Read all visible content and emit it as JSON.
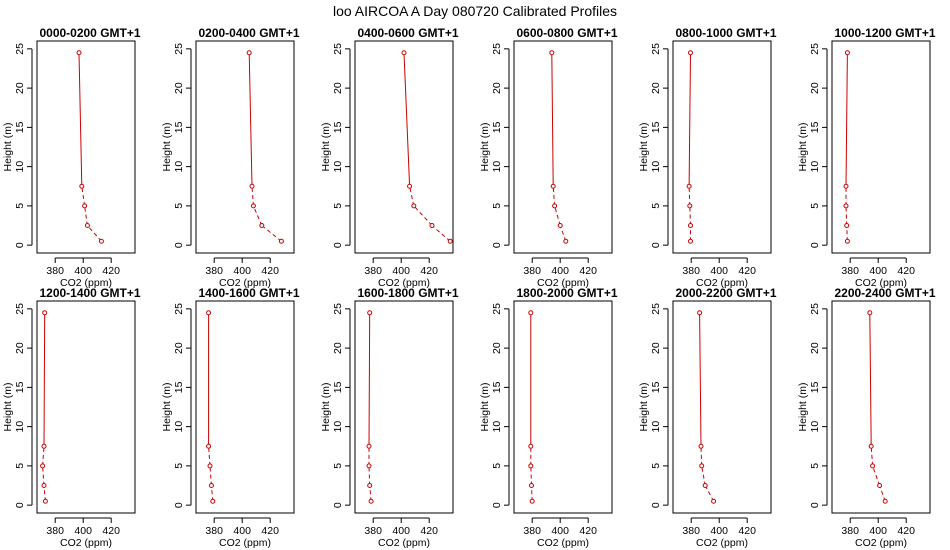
{
  "figure_title": "loo AIRCOA A  Day 080720  Calibrated Profiles",
  "chart_data": [
    {
      "type": "line",
      "title": "0000-0200 GMT+1",
      "xlabel": "CO2 (ppm)",
      "ylabel": "Height (m)",
      "xlim": [
        367,
        437
      ],
      "ylim": [
        -1,
        26
      ],
      "xticks": [
        380,
        400,
        420
      ],
      "yticks": [
        0,
        5,
        10,
        15,
        20,
        25
      ],
      "color": "#cc0000",
      "series": [
        {
          "x": [
            413,
            403,
            401,
            399,
            397
          ],
          "y": [
            0.5,
            2.5,
            5,
            7.5,
            24.5
          ]
        }
      ]
    },
    {
      "type": "line",
      "title": "0200-0400 GMT+1",
      "xlabel": "CO2 (ppm)",
      "ylabel": "Height (m)",
      "xlim": [
        367,
        437
      ],
      "ylim": [
        -1,
        26
      ],
      "xticks": [
        380,
        400,
        420
      ],
      "yticks": [
        0,
        5,
        10,
        15,
        20,
        25
      ],
      "color": "#cc0000",
      "series": [
        {
          "x": [
            428,
            414,
            408,
            407,
            405
          ],
          "y": [
            0.5,
            2.5,
            5,
            7.5,
            24.5
          ]
        }
      ]
    },
    {
      "type": "line",
      "title": "0400-0600 GMT+1",
      "xlabel": "CO2 (ppm)",
      "ylabel": "Height (m)",
      "xlim": [
        367,
        437
      ],
      "ylim": [
        -1,
        26
      ],
      "xticks": [
        380,
        400,
        420
      ],
      "yticks": [
        0,
        5,
        10,
        15,
        20,
        25
      ],
      "color": "#cc0000",
      "series": [
        {
          "x": [
            435,
            422,
            409,
            406,
            402
          ],
          "y": [
            0.5,
            2.5,
            5,
            7.5,
            24.5
          ]
        }
      ]
    },
    {
      "type": "line",
      "title": "0600-0800 GMT+1",
      "xlabel": "CO2 (ppm)",
      "ylabel": "Height (m)",
      "xlim": [
        367,
        437
      ],
      "ylim": [
        -1,
        26
      ],
      "xticks": [
        380,
        400,
        420
      ],
      "yticks": [
        0,
        5,
        10,
        15,
        20,
        25
      ],
      "color": "#cc0000",
      "series": [
        {
          "x": [
            404,
            400,
            396,
            395,
            394
          ],
          "y": [
            0.5,
            2.5,
            5,
            7.5,
            24.5
          ]
        }
      ]
    },
    {
      "type": "line",
      "title": "0800-1000 GMT+1",
      "xlabel": "CO2 (ppm)",
      "ylabel": "Height (m)",
      "xlim": [
        367,
        437
      ],
      "ylim": [
        -1,
        26
      ],
      "xticks": [
        380,
        400,
        420
      ],
      "yticks": [
        0,
        5,
        10,
        15,
        20,
        25
      ],
      "color": "#cc0000",
      "series": [
        {
          "x": [
            379.5,
            379.5,
            379,
            378.5,
            379.5
          ],
          "y": [
            0.5,
            2.5,
            5,
            7.5,
            24.5
          ]
        }
      ]
    },
    {
      "type": "line",
      "title": "1000-1200 GMT+1",
      "xlabel": "CO2 (ppm)",
      "ylabel": "Height (m)",
      "xlim": [
        367,
        437
      ],
      "ylim": [
        -1,
        26
      ],
      "xticks": [
        380,
        400,
        420
      ],
      "yticks": [
        0,
        5,
        10,
        15,
        20,
        25
      ],
      "color": "#cc0000",
      "series": [
        {
          "x": [
            378,
            377.5,
            377,
            377,
            378
          ],
          "y": [
            0.5,
            2.5,
            5,
            7.5,
            24.5
          ]
        }
      ]
    },
    {
      "type": "line",
      "title": "1200-1400 GMT+1",
      "xlabel": "CO2 (ppm)",
      "ylabel": "Height (m)",
      "xlim": [
        367,
        437
      ],
      "ylim": [
        -1,
        26
      ],
      "xticks": [
        380,
        400,
        420
      ],
      "yticks": [
        0,
        5,
        10,
        15,
        20,
        25
      ],
      "color": "#cc0000",
      "series": [
        {
          "x": [
            373,
            372,
            371,
            372,
            372.5
          ],
          "y": [
            0.5,
            2.5,
            5,
            7.5,
            24.5
          ]
        }
      ]
    },
    {
      "type": "line",
      "title": "1400-1600 GMT+1",
      "xlabel": "CO2 (ppm)",
      "ylabel": "Height (m)",
      "xlim": [
        367,
        437
      ],
      "ylim": [
        -1,
        26
      ],
      "xticks": [
        380,
        400,
        420
      ],
      "yticks": [
        0,
        5,
        10,
        15,
        20,
        25
      ],
      "color": "#cc0000",
      "series": [
        {
          "x": [
            379,
            378,
            377,
            376,
            376
          ],
          "y": [
            0.5,
            2.5,
            5,
            7.5,
            24.5
          ]
        }
      ]
    },
    {
      "type": "line",
      "title": "1600-1800 GMT+1",
      "xlabel": "CO2 (ppm)",
      "ylabel": "Height (m)",
      "xlim": [
        367,
        437
      ],
      "ylim": [
        -1,
        26
      ],
      "xticks": [
        380,
        400,
        420
      ],
      "yticks": [
        0,
        5,
        10,
        15,
        20,
        25
      ],
      "color": "#cc0000",
      "series": [
        {
          "x": [
            378.5,
            377.5,
            377,
            377,
            377.5
          ],
          "y": [
            0.5,
            2.5,
            5,
            7.5,
            24.5
          ]
        }
      ]
    },
    {
      "type": "line",
      "title": "1800-2000 GMT+1",
      "xlabel": "CO2 (ppm)",
      "ylabel": "Height (m)",
      "xlim": [
        367,
        437
      ],
      "ylim": [
        -1,
        26
      ],
      "xticks": [
        380,
        400,
        420
      ],
      "yticks": [
        0,
        5,
        10,
        15,
        20,
        25
      ],
      "color": "#cc0000",
      "series": [
        {
          "x": [
            380,
            379.5,
            379,
            379,
            379
          ],
          "y": [
            0.5,
            2.5,
            5,
            7.5,
            24.5
          ]
        }
      ]
    },
    {
      "type": "line",
      "title": "2000-2200 GMT+1",
      "xlabel": "CO2 (ppm)",
      "ylabel": "Height (m)",
      "xlim": [
        367,
        437
      ],
      "ylim": [
        -1,
        26
      ],
      "xticks": [
        380,
        400,
        420
      ],
      "yticks": [
        0,
        5,
        10,
        15,
        20,
        25
      ],
      "color": "#cc0000",
      "series": [
        {
          "x": [
            396,
            390,
            387.5,
            387,
            386
          ],
          "y": [
            0.5,
            2.5,
            5,
            7.5,
            24.5
          ]
        }
      ]
    },
    {
      "type": "line",
      "title": "2200-2400 GMT+1",
      "xlabel": "CO2 (ppm)",
      "ylabel": "Height (m)",
      "xlim": [
        367,
        437
      ],
      "ylim": [
        -1,
        26
      ],
      "xticks": [
        380,
        400,
        420
      ],
      "yticks": [
        0,
        5,
        10,
        15,
        20,
        25
      ],
      "color": "#cc0000",
      "series": [
        {
          "x": [
            405,
            401,
            396,
            395,
            394
          ],
          "y": [
            0.5,
            2.5,
            5,
            7.5,
            24.5
          ]
        }
      ]
    }
  ]
}
